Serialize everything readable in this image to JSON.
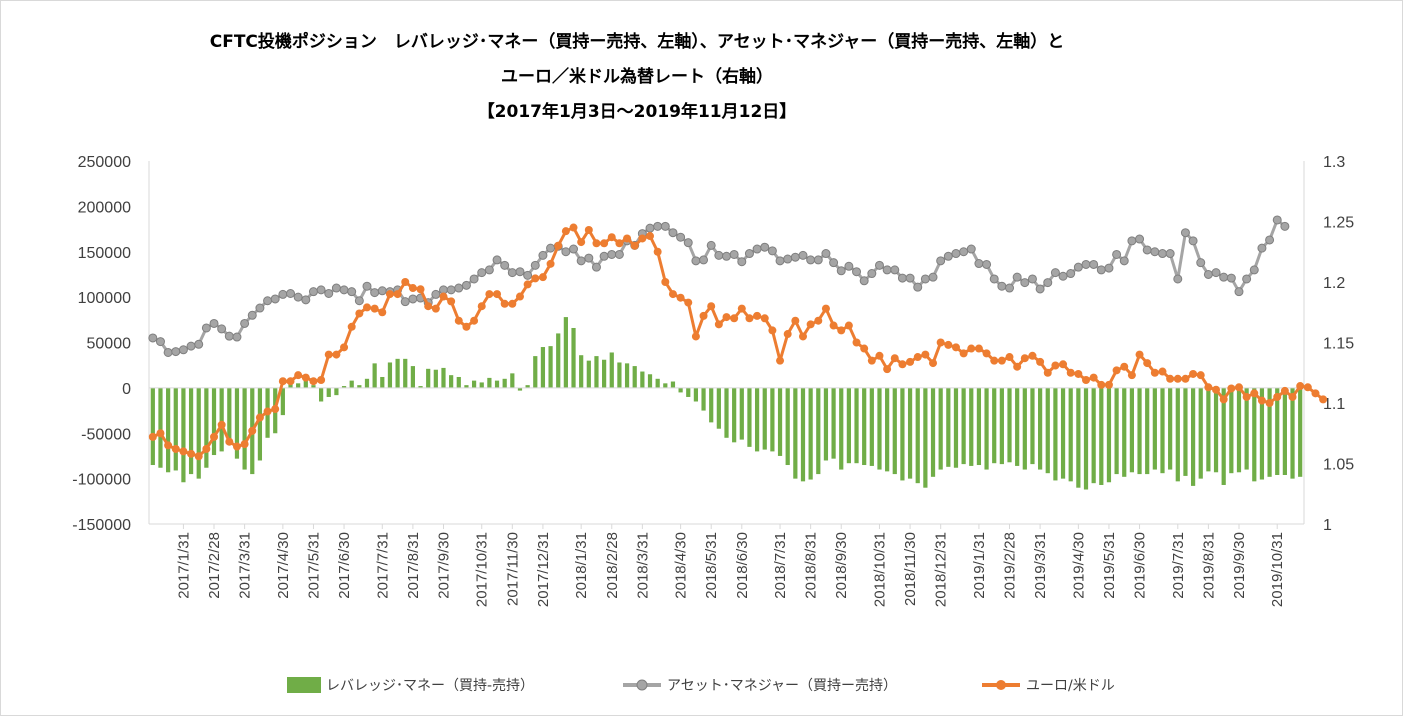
{
  "chart_data": {
    "type": "bar+line",
    "title_lines": [
      "CFTC投機ポジション　レバレッジ･マネー（買持ー売持、左軸）、アセット･マネジャー（買持ー売持、左軸）と",
      "ユーロ／米ドル為替レート（右軸）",
      "【2017年1月3日～2019年11月12日】"
    ],
    "y_left": {
      "min": -150000,
      "max": 250000,
      "step": 50000,
      "tick_labels": [
        "250000",
        "200000",
        "150000",
        "100000",
        "50000",
        "0",
        "-50000",
        "-100000",
        "-150000"
      ]
    },
    "y_right": {
      "min": 1.0,
      "max": 1.3,
      "step": 0.05,
      "tick_labels": [
        "1.3",
        "1.25",
        "1.2",
        "1.15",
        "1.1",
        "1.05",
        "1"
      ]
    },
    "x_tick_labels": [
      "2017/1/31",
      "2017/2/28",
      "2017/3/31",
      "2017/4/30",
      "2017/5/31",
      "2017/6/30",
      "2017/7/31",
      "2017/8/31",
      "2017/9/30",
      "2017/10/31",
      "2017/11/30",
      "2017/12/31",
      "2018/1/31",
      "2018/2/28",
      "2018/3/31",
      "2018/4/30",
      "2018/5/31",
      "2018/6/30",
      "2018/7/31",
      "2018/8/31",
      "2018/9/30",
      "2018/10/31",
      "2018/11/30",
      "2018/12/31",
      "2019/1/31",
      "2019/2/28",
      "2019/3/31",
      "2019/4/30",
      "2019/5/31",
      "2019/6/30",
      "2019/7/31",
      "2019/8/31",
      "2019/9/30",
      "2019/10/31"
    ],
    "x_tick_positions": [
      4,
      8,
      12,
      17,
      21,
      25,
      30,
      34,
      38,
      43,
      47,
      51,
      56,
      60,
      64,
      69,
      73,
      77,
      82,
      86,
      90,
      95,
      99,
      103,
      108,
      112,
      116,
      121,
      125,
      129,
      134,
      138,
      142,
      147
    ],
    "series": [
      {
        "name": "レバレッジ･マネー（買持-売持）",
        "type": "bar",
        "axis": "left",
        "color": "#70ad47",
        "values": [
          -85000,
          -88000,
          -93000,
          -91000,
          -104000,
          -95000,
          -100000,
          -88000,
          -74000,
          -70000,
          -62000,
          -78000,
          -90000,
          -95000,
          -80000,
          -55000,
          -50000,
          -30000,
          10000,
          5000,
          8000,
          3000,
          -15000,
          -10000,
          -8000,
          2000,
          8000,
          3000,
          10000,
          27000,
          12000,
          28000,
          32000,
          32000,
          24000,
          2000,
          21000,
          20000,
          22000,
          14000,
          12000,
          3000,
          8000,
          6000,
          11000,
          8000,
          10000,
          16000,
          -3000,
          3000,
          35000,
          45000,
          46000,
          60000,
          78000,
          66000,
          36000,
          30000,
          35000,
          31000,
          39000,
          28000,
          27000,
          24000,
          18000,
          15000,
          10000,
          5000,
          7000,
          -5000,
          -10000,
          -15000,
          -25000,
          -38000,
          -45000,
          -55000,
          -60000,
          -57000,
          -65000,
          -70000,
          -68000,
          -70000,
          -75000,
          -85000,
          -100000,
          -103000,
          -101000,
          -95000,
          -80000,
          -78000,
          -90000,
          -83000,
          -83000,
          -85000,
          -86000,
          -90000,
          -92000,
          -95000,
          -102000,
          -100000,
          -105000,
          -110000,
          -98000,
          -90000,
          -87000,
          -88000,
          -84000,
          -86000,
          -85000,
          -90000,
          -83000,
          -84000,
          -82000,
          -86000,
          -90000,
          -84000,
          -90000,
          -94000,
          -102000,
          -100000,
          -103000,
          -110000,
          -112000,
          -105000,
          -107000,
          -104000,
          -95000,
          -98000,
          -93000,
          -95000,
          -95000,
          -90000,
          -94000,
          -90000,
          -103000,
          -97000,
          -108000,
          -100000,
          -92000,
          -93000,
          -107000,
          -94000,
          -93000,
          -90000,
          -103000,
          -101000,
          -98000,
          -96000,
          -96000,
          -100000,
          -98000
        ]
      },
      {
        "name": "アセット･マネジャー（買持ー売持）",
        "type": "line",
        "axis": "left",
        "color": "#a5a5a5",
        "values": [
          55000,
          51000,
          39000,
          40000,
          42000,
          46000,
          48000,
          66000,
          71000,
          65000,
          57000,
          56000,
          71000,
          80000,
          88000,
          96000,
          98000,
          103000,
          104000,
          100000,
          97000,
          106000,
          108000,
          104000,
          110000,
          108000,
          106000,
          96000,
          112000,
          105000,
          107000,
          106000,
          108000,
          95000,
          98000,
          99000,
          94000,
          103000,
          108000,
          108000,
          110000,
          113000,
          120000,
          127000,
          130000,
          141000,
          135000,
          127000,
          128000,
          124000,
          135000,
          146000,
          154000,
          156000,
          150000,
          153000,
          140000,
          143000,
          133000,
          145000,
          147000,
          147000,
          162000,
          157000,
          170000,
          176000,
          178000,
          178000,
          171000,
          166000,
          160000,
          140000,
          141000,
          157000,
          146000,
          145000,
          147000,
          139000,
          148000,
          153000,
          155000,
          151000,
          140000,
          142000,
          144000,
          146000,
          141000,
          141000,
          148000,
          138000,
          129000,
          134000,
          128000,
          118000,
          126000,
          135000,
          130000,
          130000,
          121000,
          121000,
          111000,
          120000,
          122000,
          140000,
          145000,
          148000,
          150000,
          153000,
          137000,
          136000,
          120000,
          112000,
          110000,
          122000,
          116000,
          120000,
          109000,
          116000,
          127000,
          123000,
          126000,
          133000,
          136000,
          136000,
          130000,
          132000,
          147000,
          140000,
          162000,
          164000,
          152000,
          150000,
          148000,
          148000,
          120000,
          171000,
          162000,
          138000,
          125000,
          127000,
          122000,
          121000,
          106000,
          120000,
          130000,
          154000,
          163000,
          185000,
          178000
        ]
      },
      {
        "name": "ユーロ/米ドル",
        "type": "line",
        "axis": "right",
        "color": "#ed7d31",
        "values": [
          1.072,
          1.075,
          1.065,
          1.062,
          1.06,
          1.058,
          1.056,
          1.062,
          1.072,
          1.082,
          1.068,
          1.064,
          1.066,
          1.077,
          1.088,
          1.093,
          1.095,
          1.118,
          1.118,
          1.123,
          1.121,
          1.118,
          1.119,
          1.14,
          1.14,
          1.146,
          1.163,
          1.174,
          1.179,
          1.178,
          1.175,
          1.19,
          1.19,
          1.2,
          1.195,
          1.194,
          1.18,
          1.178,
          1.188,
          1.184,
          1.168,
          1.163,
          1.168,
          1.18,
          1.19,
          1.19,
          1.182,
          1.182,
          1.188,
          1.198,
          1.203,
          1.204,
          1.215,
          1.23,
          1.242,
          1.245,
          1.233,
          1.243,
          1.232,
          1.232,
          1.237,
          1.232,
          1.236,
          1.23,
          1.236,
          1.238,
          1.225,
          1.2,
          1.19,
          1.187,
          1.183,
          1.155,
          1.172,
          1.18,
          1.165,
          1.171,
          1.17,
          1.178,
          1.17,
          1.172,
          1.17,
          1.16,
          1.135,
          1.157,
          1.168,
          1.155,
          1.165,
          1.168,
          1.178,
          1.164,
          1.16,
          1.164,
          1.15,
          1.145,
          1.135,
          1.139,
          1.128,
          1.137,
          1.132,
          1.134,
          1.138,
          1.14,
          1.133,
          1.15,
          1.148,
          1.146,
          1.141,
          1.145,
          1.145,
          1.141,
          1.135,
          1.135,
          1.138,
          1.13,
          1.137,
          1.139,
          1.134,
          1.125,
          1.131,
          1.132,
          1.125,
          1.124,
          1.119,
          1.121,
          1.115,
          1.115,
          1.127,
          1.13,
          1.123,
          1.14,
          1.133,
          1.125,
          1.126,
          1.12,
          1.12,
          1.12,
          1.124,
          1.123,
          1.113,
          1.111,
          1.103,
          1.112,
          1.113,
          1.105,
          1.108,
          1.102,
          1.1,
          1.105,
          1.11,
          1.105,
          1.114,
          1.113,
          1.108,
          1.103
        ]
      }
    ],
    "legend": {
      "position": "bottom",
      "items": [
        "レバレッジ･マネー（買持-売持）",
        "アセット･マネジャー（買持ー売持）",
        "ユーロ/米ドル"
      ]
    }
  },
  "colors": {
    "axis": "#d9d9d9",
    "text": "#404040",
    "bar": "#70ad47",
    "asset": "#a5a5a5",
    "eur": "#ed7d31"
  }
}
